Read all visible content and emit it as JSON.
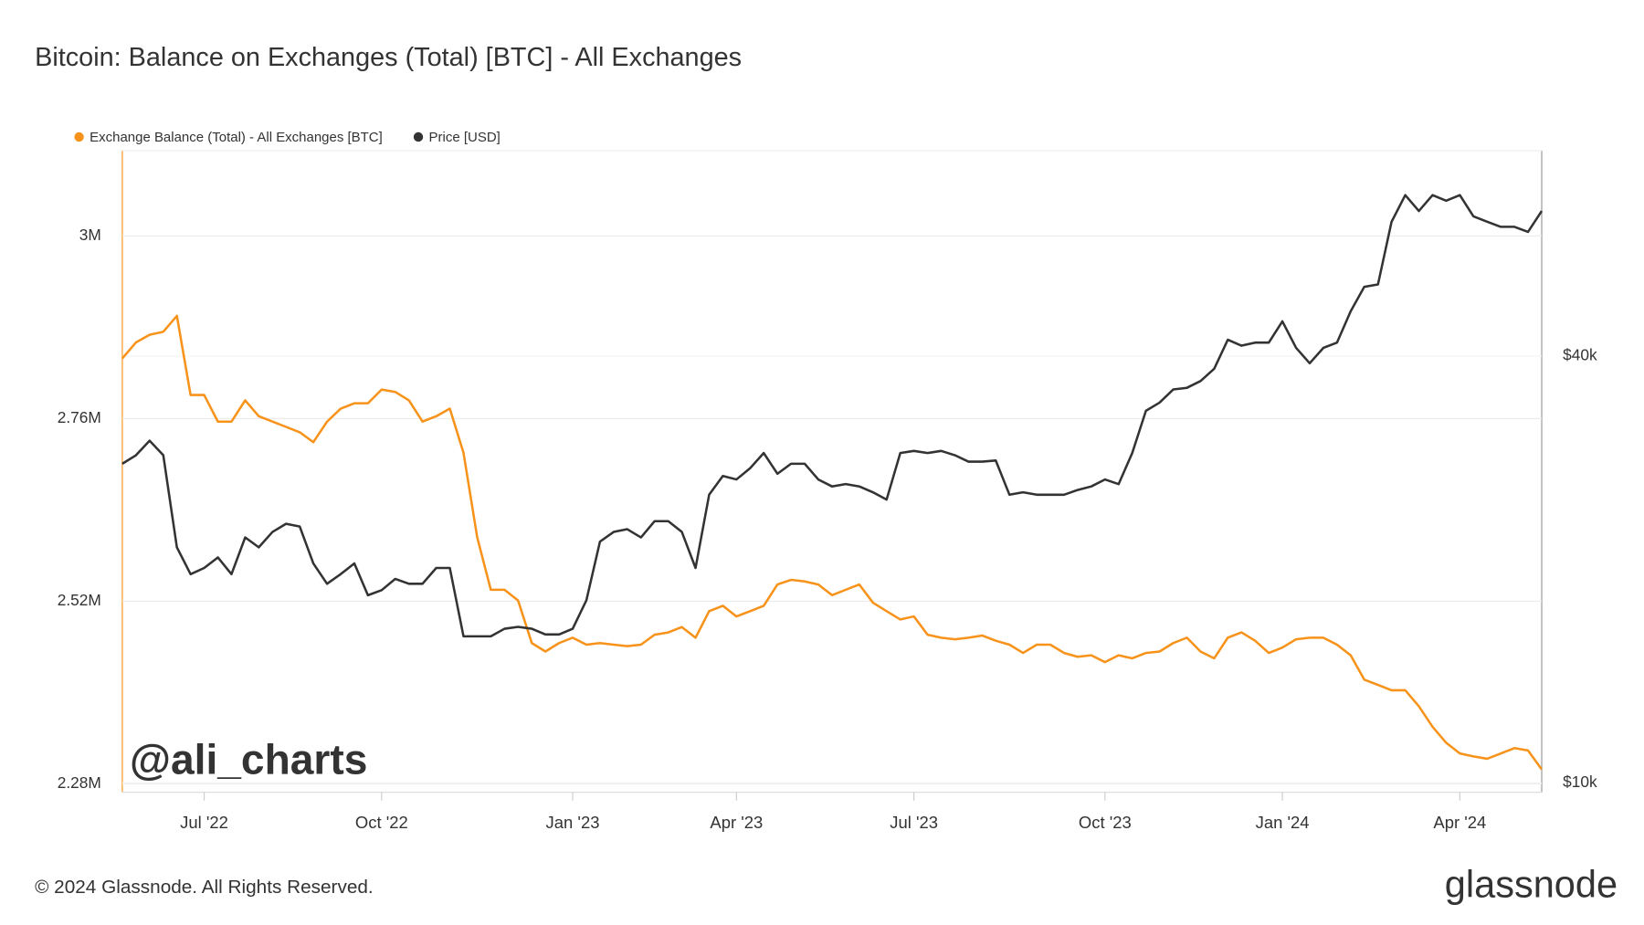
{
  "chart_data": {
    "type": "line",
    "title": "Bitcoin: Balance on Exchanges (Total) [BTC] - All Exchanges",
    "watermark": "@ali_charts",
    "footer": "© 2024 Glassnode. All Rights Reserved.",
    "logo": "glassnode",
    "categories": [
      null,
      null,
      null,
      null,
      null,
      null,
      "Jul '22",
      null,
      null,
      null,
      null,
      null,
      null,
      null,
      null,
      null,
      null,
      null,
      null,
      "Oct '22",
      null,
      null,
      null,
      null,
      null,
      null,
      null,
      null,
      null,
      null,
      null,
      null,
      null,
      "Jan '23",
      null,
      null,
      null,
      null,
      null,
      null,
      null,
      null,
      null,
      null,
      null,
      "Apr '23",
      null,
      null,
      null,
      null,
      null,
      null,
      null,
      null,
      null,
      null,
      null,
      null,
      "Jul '23",
      null,
      null,
      null,
      null,
      null,
      null,
      null,
      null,
      null,
      null,
      null,
      null,
      null,
      "Oct '23",
      null,
      null,
      null,
      null,
      null,
      null,
      null,
      null,
      null,
      null,
      null,
      null,
      "Jan '24",
      null,
      null,
      null,
      null,
      null,
      null,
      null,
      null,
      null,
      null,
      null,
      null,
      "Apr '24",
      null,
      null,
      null,
      null,
      null,
      null
    ],
    "ylim": [
      2269000,
      3112000
    ],
    "yticks": [
      {
        "value": 2280000,
        "label": "2.28M"
      },
      {
        "value": 2520000,
        "label": "2.52M"
      },
      {
        "value": 2760000,
        "label": "2.76M"
      },
      {
        "value": 3000000,
        "label": "3M"
      }
    ],
    "y2lim": [
      9700,
      78000
    ],
    "y2ticks": [
      {
        "value": 10000,
        "label": "$10k"
      },
      {
        "value": 40000,
        "label": "$40k"
      }
    ],
    "y2log": true,
    "grid": true,
    "legend": "top-left",
    "series": [
      {
        "name": "Exchange Balance (Total) - All Exchanges [BTC]",
        "color": "#f7931a",
        "axis": "y",
        "values": [
          2839000,
          2860000,
          2870000,
          2874000,
          2895000,
          2791000,
          2791000,
          2756000,
          2756000,
          2784000,
          2763000,
          2756000,
          2749000,
          2742000,
          2729000,
          2756000,
          2773000,
          2780000,
          2780000,
          2798000,
          2795000,
          2784000,
          2756000,
          2763000,
          2773000,
          2715000,
          2604000,
          2535000,
          2535000,
          2521000,
          2465000,
          2454000,
          2465000,
          2472000,
          2463000,
          2465000,
          2463000,
          2461000,
          2463000,
          2476000,
          2479000,
          2486000,
          2472000,
          2507000,
          2514000,
          2500000,
          2507000,
          2514000,
          2542000,
          2548000,
          2546000,
          2542000,
          2528000,
          2535000,
          2542000,
          2518000,
          2507000,
          2496000,
          2500000,
          2476000,
          2472000,
          2470000,
          2472000,
          2475000,
          2468000,
          2463000,
          2452000,
          2463000,
          2463000,
          2452000,
          2447000,
          2449000,
          2440000,
          2449000,
          2445000,
          2452000,
          2454000,
          2465000,
          2472000,
          2454000,
          2445000,
          2472000,
          2479000,
          2468000,
          2452000,
          2459000,
          2470000,
          2472000,
          2472000,
          2463000,
          2449000,
          2417000,
          2410000,
          2403000,
          2403000,
          2382000,
          2355000,
          2334000,
          2320000,
          2316000,
          2313000,
          2320000,
          2327000,
          2324000,
          2299000
        ]
      },
      {
        "name": "Price [USD]",
        "color": "#333333",
        "axis": "y2",
        "values": [
          28200,
          29000,
          30400,
          29000,
          21500,
          19700,
          20100,
          20800,
          19700,
          22200,
          21500,
          22600,
          23200,
          23000,
          20400,
          19100,
          19700,
          20400,
          18400,
          18700,
          19400,
          19100,
          19100,
          20100,
          20100,
          16100,
          16100,
          16100,
          16500,
          16600,
          16500,
          16200,
          16200,
          16500,
          18100,
          21900,
          22600,
          22800,
          22200,
          23400,
          23400,
          22600,
          20100,
          25500,
          27100,
          26800,
          27800,
          29200,
          27300,
          28200,
          28200,
          26800,
          26200,
          26400,
          26200,
          25700,
          25100,
          29200,
          29400,
          29200,
          29400,
          29000,
          28400,
          28400,
          28500,
          25500,
          25700,
          25500,
          25500,
          25500,
          25900,
          26200,
          26800,
          26400,
          29200,
          33500,
          34400,
          35900,
          36100,
          36900,
          38400,
          42200,
          41400,
          41800,
          41800,
          44800,
          41100,
          39100,
          41100,
          41800,
          46300,
          50100,
          50500,
          61900,
          67500,
          64100,
          67500,
          66300,
          67500,
          63000,
          61900,
          60900,
          60900,
          59900,
          64100
        ]
      }
    ]
  }
}
